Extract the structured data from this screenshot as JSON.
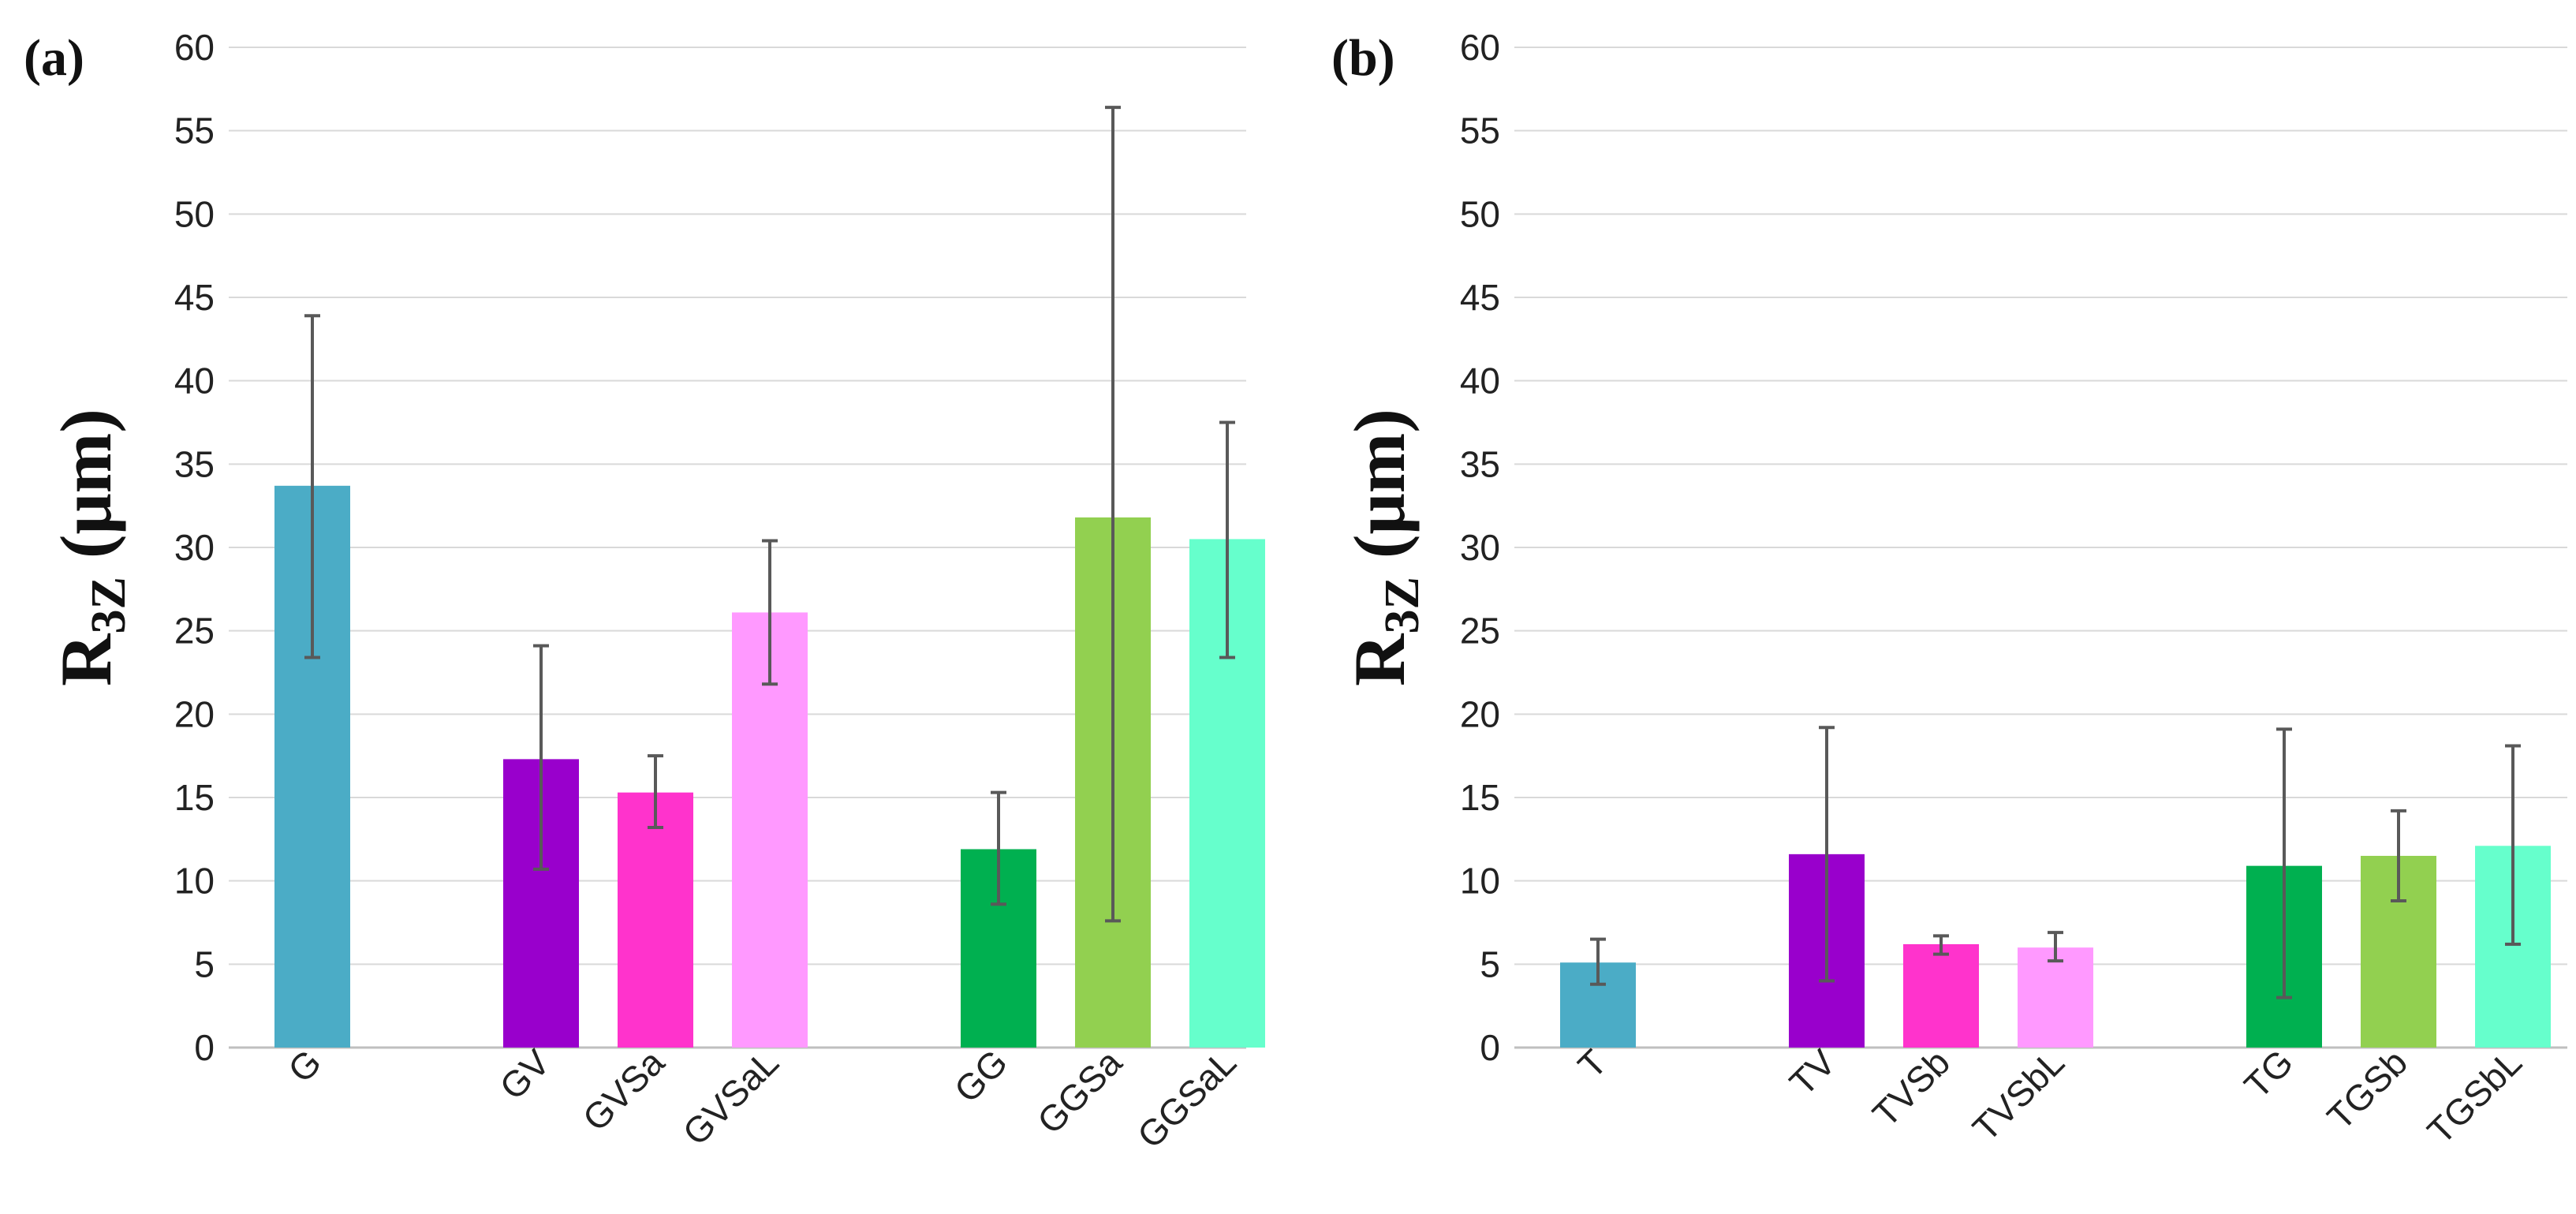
{
  "chart_data": [
    {
      "type": "bar",
      "panel_label": "(a)",
      "ylabel_main": "R",
      "ylabel_sub": "3Z",
      "ylabel_unit": " (μm)",
      "ylim": [
        0,
        60
      ],
      "yticks": [
        0,
        5,
        10,
        15,
        20,
        25,
        30,
        35,
        40,
        45,
        50,
        55,
        60
      ],
      "grid": true,
      "categories": [
        "G",
        "GV",
        "GVSa",
        "GVSaL",
        "GG",
        "GGSa",
        "GGSaL"
      ],
      "groups": [
        [
          0
        ],
        [
          1,
          2,
          3
        ],
        [
          4,
          5,
          6
        ]
      ],
      "values": [
        33.7,
        17.3,
        15.3,
        26.1,
        11.9,
        31.8,
        30.5
      ],
      "error_low": [
        23.4,
        10.7,
        13.2,
        21.8,
        8.6,
        7.6,
        23.4
      ],
      "error_high": [
        43.9,
        24.1,
        17.5,
        30.4,
        15.3,
        56.4,
        37.5
      ],
      "colors": [
        "#4BACC6",
        "#9900CC",
        "#FF33CC",
        "#FF99FF",
        "#00B050",
        "#92D050",
        "#66FFCC"
      ]
    },
    {
      "type": "bar",
      "panel_label": "(b)",
      "ylabel_main": "R",
      "ylabel_sub": "3Z",
      "ylabel_unit": " (μm)",
      "ylim": [
        0,
        60
      ],
      "yticks": [
        0,
        5,
        10,
        15,
        20,
        25,
        30,
        35,
        40,
        45,
        50,
        55,
        60
      ],
      "grid": true,
      "categories": [
        "T",
        "TV",
        "TVSb",
        "TVSbL",
        "TG",
        "TGSb",
        "TGSbL"
      ],
      "groups": [
        [
          0
        ],
        [
          1,
          2,
          3
        ],
        [
          4,
          5,
          6
        ]
      ],
      "values": [
        5.1,
        11.6,
        6.2,
        6.0,
        10.9,
        11.5,
        12.1
      ],
      "error_low": [
        3.8,
        4.0,
        5.6,
        5.2,
        3.0,
        8.8,
        6.2
      ],
      "error_high": [
        6.5,
        19.2,
        6.7,
        6.9,
        19.1,
        14.2,
        18.1
      ],
      "colors": [
        "#4BACC6",
        "#9900CC",
        "#FF33CC",
        "#FF99FF",
        "#00B050",
        "#92D050",
        "#66FFCC"
      ]
    }
  ]
}
